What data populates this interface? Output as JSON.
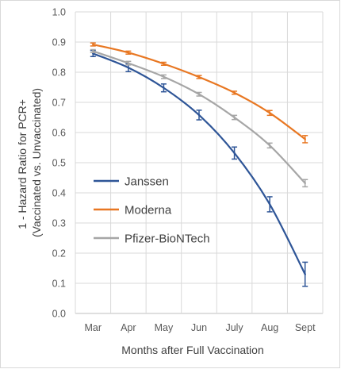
{
  "chart_data": {
    "type": "line",
    "title": "",
    "xlabel": "Months after Full Vaccination",
    "ylabel_lines": [
      "1 - Hazard Ratio for PCR+",
      "(Vaccinated vs. Unvaccinated)"
    ],
    "categories": [
      "Mar",
      "Apr",
      "May",
      "Jun",
      "July",
      "Aug",
      "Sept"
    ],
    "yticks": [
      "0.0",
      "0.1",
      "0.2",
      "0.3",
      "0.4",
      "0.5",
      "0.6",
      "0.7",
      "0.8",
      "0.9",
      "1.0"
    ],
    "ylim": [
      0,
      1.0
    ],
    "grid": true,
    "legend_position": "left-center",
    "series": [
      {
        "name": "Janssen",
        "color": "#2e5597",
        "values": [
          0.862,
          0.815,
          0.748,
          0.658,
          0.532,
          0.362,
          0.13
        ],
        "err": [
          0.01,
          0.013,
          0.013,
          0.016,
          0.02,
          0.025,
          0.04
        ]
      },
      {
        "name": "Moderna",
        "color": "#e87722",
        "values": [
          0.892,
          0.865,
          0.828,
          0.784,
          0.732,
          0.665,
          0.578
        ],
        "err": [
          0.005,
          0.005,
          0.005,
          0.005,
          0.005,
          0.008,
          0.012
        ]
      },
      {
        "name": "Pfizer-BioNTech",
        "color": "#a6a6a6",
        "values": [
          0.87,
          0.83,
          0.785,
          0.727,
          0.65,
          0.557,
          0.432
        ],
        "err": [
          0.005,
          0.006,
          0.006,
          0.006,
          0.007,
          0.008,
          0.012
        ]
      }
    ]
  }
}
